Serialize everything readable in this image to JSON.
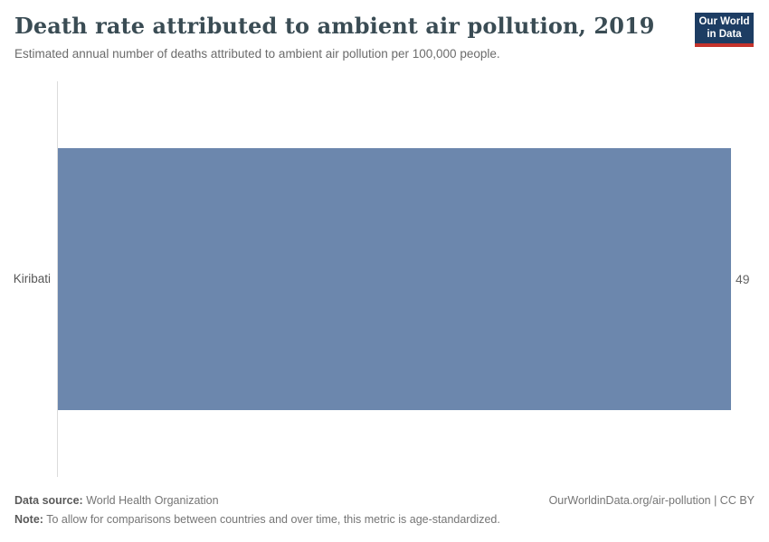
{
  "header": {
    "title": "Death rate attributed to ambient air pollution, 2019",
    "subtitle": "Estimated annual number of deaths attributed to ambient air pollution per 100,000 people.",
    "logo": {
      "line1": "Our World",
      "line2": "in Data"
    }
  },
  "chart_data": {
    "type": "bar",
    "orientation": "horizontal",
    "title": "Death rate attributed to ambient air pollution, 2019",
    "categories": [
      "Kiribati"
    ],
    "values": [
      49
    ],
    "xlabel": "",
    "ylabel": "",
    "xlim": [
      0,
      49
    ],
    "grid": false,
    "legend": "none",
    "bar_color": "#6c87ad"
  },
  "footer": {
    "datasource_label": "Data source:",
    "datasource_value": "World Health Organization",
    "note_label": "Note:",
    "note_value": "To allow for comparisons between countries and over time, this metric is age-standardized.",
    "link": "OurWorldinData.org/air-pollution | CC BY"
  },
  "colors": {
    "bar": "#6c87ad",
    "title_text": "#3a4c54",
    "axis_line": "#dcdcdc",
    "logo_background": "#1d3d63",
    "logo_underline": "#c5332b"
  }
}
